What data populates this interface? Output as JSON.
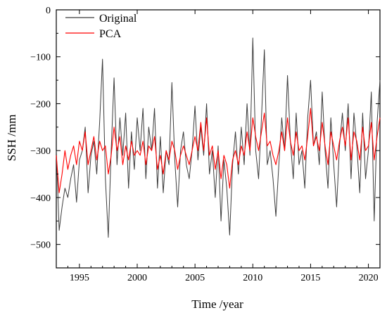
{
  "chart_data": {
    "type": "line",
    "xlabel": "Time /year",
    "ylabel": "SSH /mm",
    "xlim": [
      1993,
      2021
    ],
    "ylim": [
      -550,
      0
    ],
    "x_ticks": [
      1995,
      2000,
      2005,
      2010,
      2015,
      2020
    ],
    "y_ticks": [
      0,
      -100,
      -200,
      -300,
      -400,
      -500
    ],
    "legend_position": "top-left",
    "series": [
      {
        "name": "Original",
        "color": "#3c3c3c",
        "x": [
          1993.0,
          1993.25,
          1993.5,
          1993.75,
          1994.0,
          1994.25,
          1994.5,
          1994.75,
          1995.0,
          1995.25,
          1995.5,
          1995.75,
          1996.0,
          1996.25,
          1996.5,
          1996.75,
          1997.0,
          1997.25,
          1997.5,
          1997.75,
          1998.0,
          1998.25,
          1998.5,
          1998.75,
          1999.0,
          1999.25,
          1999.5,
          1999.75,
          2000.0,
          2000.25,
          2000.5,
          2000.75,
          2001.0,
          2001.25,
          2001.5,
          2001.75,
          2002.0,
          2002.25,
          2002.5,
          2002.75,
          2003.0,
          2003.25,
          2003.5,
          2003.75,
          2004.0,
          2004.25,
          2004.5,
          2004.75,
          2005.0,
          2005.25,
          2005.5,
          2005.75,
          2006.0,
          2006.25,
          2006.5,
          2006.75,
          2007.0,
          2007.25,
          2007.5,
          2007.75,
          2008.0,
          2008.25,
          2008.5,
          2008.75,
          2009.0,
          2009.25,
          2009.5,
          2009.75,
          2010.0,
          2010.25,
          2010.5,
          2010.75,
          2011.0,
          2011.25,
          2011.5,
          2011.75,
          2012.0,
          2012.25,
          2012.5,
          2012.75,
          2013.0,
          2013.25,
          2013.5,
          2013.75,
          2014.0,
          2014.25,
          2014.5,
          2014.75,
          2015.0,
          2015.25,
          2015.5,
          2015.75,
          2016.0,
          2016.25,
          2016.5,
          2016.75,
          2017.0,
          2017.25,
          2017.5,
          2017.75,
          2018.0,
          2018.25,
          2018.5,
          2018.75,
          2019.0,
          2019.25,
          2019.5,
          2019.75,
          2020.0,
          2020.25,
          2020.5,
          2020.75,
          2021.0
        ],
        "y": [
          -300,
          -470,
          -420,
          -380,
          -400,
          -360,
          -330,
          -410,
          -320,
          -300,
          -250,
          -390,
          -310,
          -280,
          -350,
          -240,
          -105,
          -360,
          -485,
          -300,
          -145,
          -330,
          -230,
          -310,
          -220,
          -380,
          -260,
          -340,
          -230,
          -300,
          -210,
          -360,
          -250,
          -300,
          -210,
          -380,
          -270,
          -390,
          -300,
          -330,
          -155,
          -320,
          -420,
          -300,
          -260,
          -330,
          -360,
          -300,
          -205,
          -320,
          -250,
          -310,
          -200,
          -350,
          -300,
          -400,
          -290,
          -450,
          -320,
          -380,
          -480,
          -330,
          -260,
          -350,
          -250,
          -330,
          -200,
          -310,
          -60,
          -300,
          -360,
          -230,
          -85,
          -330,
          -300,
          -360,
          -440,
          -330,
          -230,
          -300,
          -140,
          -280,
          -360,
          -220,
          -330,
          -300,
          -380,
          -230,
          -150,
          -290,
          -260,
          -330,
          -175,
          -300,
          -380,
          -230,
          -330,
          -420,
          -290,
          -220,
          -300,
          -200,
          -360,
          -220,
          -290,
          -390,
          -220,
          -360,
          -300,
          -175,
          -450,
          -240,
          -150
        ]
      },
      {
        "name": "PCA",
        "color": "#ff0000",
        "x": [
          1993.0,
          1993.25,
          1993.5,
          1993.75,
          1994.0,
          1994.25,
          1994.5,
          1994.75,
          1995.0,
          1995.25,
          1995.5,
          1995.75,
          1996.0,
          1996.25,
          1996.5,
          1996.75,
          1997.0,
          1997.25,
          1997.5,
          1997.75,
          1998.0,
          1998.25,
          1998.5,
          1998.75,
          1999.0,
          1999.25,
          1999.5,
          1999.75,
          2000.0,
          2000.25,
          2000.5,
          2000.75,
          2001.0,
          2001.25,
          2001.5,
          2001.75,
          2002.0,
          2002.25,
          2002.5,
          2002.75,
          2003.0,
          2003.25,
          2003.5,
          2003.75,
          2004.0,
          2004.25,
          2004.5,
          2004.75,
          2005.0,
          2005.25,
          2005.5,
          2005.75,
          2006.0,
          2006.25,
          2006.5,
          2006.75,
          2007.0,
          2007.25,
          2007.5,
          2007.75,
          2008.0,
          2008.25,
          2008.5,
          2008.75,
          2009.0,
          2009.25,
          2009.5,
          2009.75,
          2010.0,
          2010.25,
          2010.5,
          2010.75,
          2011.0,
          2011.25,
          2011.5,
          2011.75,
          2012.0,
          2012.25,
          2012.5,
          2012.75,
          2013.0,
          2013.25,
          2013.5,
          2013.75,
          2014.0,
          2014.25,
          2014.5,
          2014.75,
          2015.0,
          2015.25,
          2015.5,
          2015.75,
          2016.0,
          2016.25,
          2016.5,
          2016.75,
          2017.0,
          2017.25,
          2017.5,
          2017.75,
          2018.0,
          2018.25,
          2018.5,
          2018.75,
          2019.0,
          2019.25,
          2019.5,
          2019.75,
          2020.0,
          2020.25,
          2020.5,
          2020.75,
          2021.0
        ],
        "y": [
          -310,
          -390,
          -350,
          -300,
          -340,
          -310,
          -290,
          -330,
          -280,
          -300,
          -260,
          -330,
          -300,
          -270,
          -320,
          -280,
          -300,
          -290,
          -350,
          -310,
          -250,
          -300,
          -270,
          -330,
          -290,
          -320,
          -280,
          -310,
          -300,
          -310,
          -280,
          -330,
          -290,
          -300,
          -270,
          -340,
          -310,
          -350,
          -300,
          -320,
          -280,
          -300,
          -340,
          -310,
          -290,
          -310,
          -330,
          -300,
          -270,
          -300,
          -240,
          -300,
          -230,
          -310,
          -290,
          -340,
          -300,
          -360,
          -310,
          -330,
          -380,
          -320,
          -300,
          -330,
          -290,
          -310,
          -260,
          -300,
          -230,
          -270,
          -300,
          -260,
          -220,
          -290,
          -280,
          -310,
          -330,
          -300,
          -260,
          -300,
          -230,
          -280,
          -310,
          -260,
          -300,
          -290,
          -320,
          -270,
          -210,
          -290,
          -270,
          -300,
          -240,
          -290,
          -330,
          -260,
          -290,
          -320,
          -280,
          -250,
          -290,
          -230,
          -320,
          -260,
          -280,
          -320,
          -250,
          -300,
          -290,
          -240,
          -320,
          -270,
          -230
        ]
      }
    ]
  }
}
